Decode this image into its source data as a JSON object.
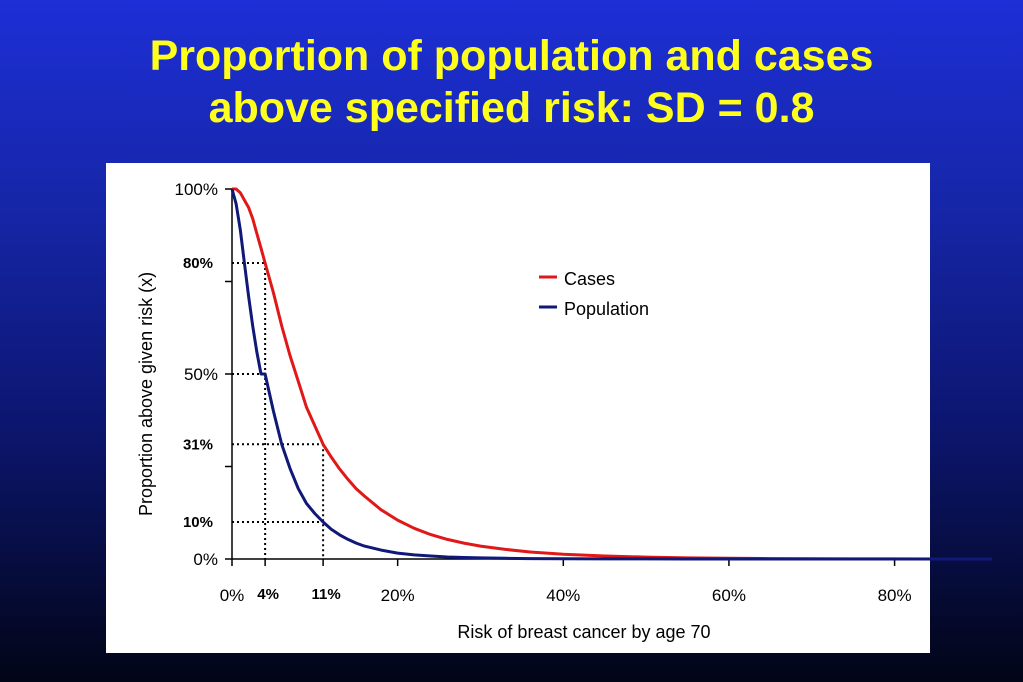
{
  "slide": {
    "title_line1": "Proportion of population and cases",
    "title_line2": "above specified risk:  SD = 0.8",
    "background_color": "#1a2bc4",
    "title_color": "#ffff1e"
  },
  "chart_data": {
    "type": "line",
    "xlabel": "Risk of breast cancer by age 70",
    "ylabel": "Proportion above given risk (x)",
    "xlim": [
      0,
      85
    ],
    "ylim": [
      0,
      100
    ],
    "x_ticks": [
      {
        "value": 0,
        "label": "0%"
      },
      {
        "value": 20,
        "label": "20%"
      },
      {
        "value": 40,
        "label": "40%"
      },
      {
        "value": 60,
        "label": "60%"
      },
      {
        "value": 80,
        "label": "80%"
      }
    ],
    "x_ref_ticks": [
      {
        "value": 4,
        "label": "4%"
      },
      {
        "value": 11,
        "label": "11%"
      }
    ],
    "y_ticks": [
      {
        "value": 0,
        "label": "0%"
      },
      {
        "value": 25,
        "label": ""
      },
      {
        "value": 50,
        "label": "50%"
      },
      {
        "value": 75,
        "label": ""
      },
      {
        "value": 100,
        "label": "100%"
      }
    ],
    "y_ref_ticks": [
      {
        "value": 10,
        "label": "10%"
      },
      {
        "value": 31,
        "label": "31%"
      },
      {
        "value": 80,
        "label": "80%"
      }
    ],
    "reference_lines": [
      {
        "x": 4,
        "y_low": 50,
        "y_high": 80
      },
      {
        "x": 11,
        "y_low": 10,
        "y_high": 31
      }
    ],
    "legend_position": "upper-right",
    "grid": false,
    "series": [
      {
        "name": "Cases",
        "color": "#e01818",
        "x": [
          0,
          0.5,
          1,
          1.5,
          2,
          2.5,
          3,
          3.5,
          4,
          5,
          6,
          7,
          8,
          9,
          10,
          11,
          12,
          13,
          14,
          15,
          16,
          18,
          20,
          22,
          24,
          26,
          28,
          30,
          33,
          36,
          40,
          45,
          50,
          55,
          60,
          65,
          70,
          75,
          80,
          85
        ],
        "y": [
          100,
          100,
          99,
          97,
          95,
          92,
          88,
          84,
          80,
          72,
          63,
          55,
          48,
          41,
          36,
          31,
          27.5,
          24.3,
          21.5,
          19,
          17,
          13.3,
          10.5,
          8.3,
          6.6,
          5.3,
          4.3,
          3.5,
          2.6,
          1.9,
          1.3,
          0.8,
          0.5,
          0.3,
          0.2,
          0.1,
          0.05,
          0.03,
          0.02,
          0.01
        ]
      },
      {
        "name": "Population",
        "color": "#101878",
        "x": [
          0,
          0.5,
          1,
          1.5,
          2,
          2.5,
          3,
          3.5,
          4,
          5,
          6,
          7,
          8,
          9,
          10,
          11,
          12,
          13,
          14,
          15,
          16,
          18,
          20,
          22,
          24,
          26,
          28,
          30,
          33,
          36,
          40,
          45,
          50,
          55,
          60,
          65,
          70,
          75,
          80,
          85
        ],
        "y": [
          100,
          96,
          89,
          80,
          71,
          63,
          56,
          50,
          50,
          40,
          31,
          24.5,
          19,
          15,
          12.3,
          10,
          8,
          6.5,
          5.3,
          4.3,
          3.5,
          2.4,
          1.6,
          1.1,
          0.8,
          0.55,
          0.4,
          0.3,
          0.2,
          0.12,
          0.07,
          0.04,
          0.02,
          0.01,
          0.01,
          0,
          0,
          0,
          0,
          0
        ]
      }
    ]
  }
}
